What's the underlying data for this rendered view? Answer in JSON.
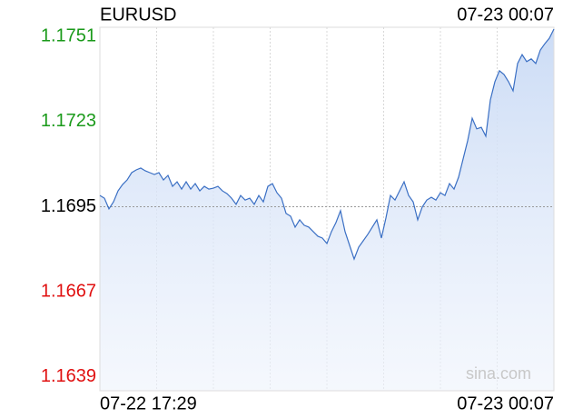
{
  "chart_data": {
    "type": "line",
    "title": "EURUSD",
    "time": "07-23 00:07",
    "start_label": "07-22 17:29",
    "end_label": "07-23 00:07",
    "watermark": "sina.com",
    "color": "#3a6fc4",
    "ylim": [
      1.16345,
      1.1754
    ],
    "yticks": [
      1.1751,
      1.1723,
      1.1695,
      1.1667,
      1.1639
    ],
    "ytick_colors": [
      "#1a9a1a",
      "#1a9a1a",
      "#000000",
      "#e01010",
      "#e01010"
    ],
    "reference_line": 1.1695,
    "values": [
      1.16987,
      1.16978,
      1.16943,
      1.16966,
      1.17002,
      1.17023,
      1.17038,
      1.17062,
      1.17071,
      1.17077,
      1.17068,
      1.17062,
      1.17056,
      1.17062,
      1.17038,
      1.17053,
      1.17017,
      1.17032,
      1.17008,
      1.17032,
      1.17008,
      1.17026,
      1.17002,
      1.17017,
      1.17008,
      1.17011,
      1.17017,
      1.17002,
      1.16993,
      1.16978,
      1.16958,
      1.16987,
      1.16972,
      1.16978,
      1.16958,
      1.16987,
      1.16966,
      1.17017,
      1.17026,
      1.16996,
      1.16978,
      1.16928,
      1.16919,
      1.16883,
      1.16907,
      1.16889,
      1.16883,
      1.16868,
      1.16853,
      1.16847,
      1.16829,
      1.16868,
      1.16898,
      1.16937,
      1.16868,
      1.16823,
      1.16778,
      1.16817,
      1.16838,
      1.16859,
      1.16883,
      1.16907,
      1.16847,
      1.16913,
      1.16987,
      1.16972,
      1.17002,
      1.17032,
      1.16987,
      1.16966,
      1.16907,
      1.16949,
      1.16972,
      1.16981,
      1.16972,
      1.16996,
      1.16987,
      1.17026,
      1.17008,
      1.17047,
      1.17107,
      1.17167,
      1.17241,
      1.17206,
      1.17211,
      1.17182,
      1.17301,
      1.17361,
      1.17397,
      1.17385,
      1.17361,
      1.17331,
      1.17421,
      1.1745,
      1.17427,
      1.17436,
      1.17421,
      1.17465,
      1.17486,
      1.17504,
      1.17534
    ]
  }
}
